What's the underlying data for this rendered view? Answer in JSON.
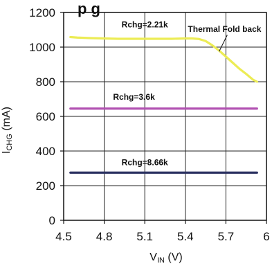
{
  "chart_data": {
    "type": "line",
    "title_fragment": "p    g",
    "xlabel": "VIN (V)",
    "xlabel_main": "V",
    "xlabel_sub": "IN",
    "xlabel_unit": " (V)",
    "ylabel": "ICHG (mA)",
    "ylabel_main": "I",
    "ylabel_sub": "CHG",
    "ylabel_unit": " (mA)",
    "xlim": [
      4.5,
      6.0
    ],
    "ylim": [
      0,
      1200
    ],
    "xticks": [
      "4.5",
      "4.8",
      "5.1",
      "5.4",
      "5.7",
      "6"
    ],
    "xtick_values": [
      4.5,
      4.8,
      5.1,
      5.4,
      5.7,
      6.0
    ],
    "yticks": [
      "0",
      "200",
      "400",
      "600",
      "800",
      "1000",
      "1200"
    ],
    "ytick_values": [
      0,
      200,
      400,
      600,
      800,
      1000,
      1200
    ],
    "grid": true,
    "series": [
      {
        "name": "Rchg=2.21k",
        "color": "#ecec55",
        "x": [
          4.55,
          4.6,
          4.7,
          4.8,
          4.9,
          5.0,
          5.1,
          5.2,
          5.3,
          5.4,
          5.45,
          5.5,
          5.55,
          5.6,
          5.65,
          5.7,
          5.75,
          5.8,
          5.85,
          5.9,
          5.93
        ],
        "y": [
          1058,
          1055,
          1052,
          1050,
          1048,
          1048,
          1048,
          1048,
          1048,
          1050,
          1050,
          1047,
          1035,
          1010,
          980,
          945,
          910,
          875,
          845,
          812,
          800
        ]
      },
      {
        "name": "Rchg=3.6k",
        "color": "#b252b2",
        "x": [
          4.55,
          5.93
        ],
        "y": [
          645,
          645
        ]
      },
      {
        "name": "Rchg=8.66k",
        "color": "#2c3262",
        "x": [
          4.55,
          5.93
        ],
        "y": [
          275,
          275
        ]
      }
    ],
    "annotations": [
      "Thermal Fold back"
    ]
  }
}
